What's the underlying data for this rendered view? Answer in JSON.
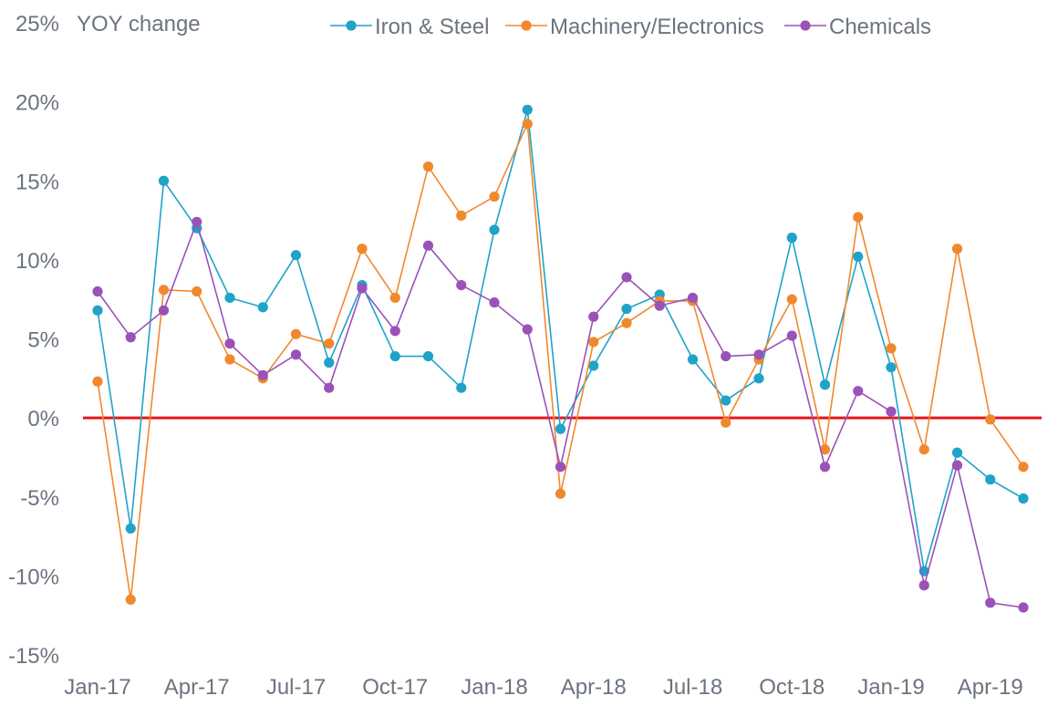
{
  "chart_data": {
    "type": "line",
    "ylabel": "YOY change",
    "ylim": [
      -15,
      25
    ],
    "yticks": [
      "25%",
      "20%",
      "15%",
      "10%",
      "5%",
      "0%",
      "-5%",
      "-10%",
      "-15%"
    ],
    "ytick_values": [
      25,
      20,
      15,
      10,
      5,
      0,
      -5,
      -10,
      -15
    ],
    "x": [
      "Jan-17",
      "Feb-17",
      "Mar-17",
      "Apr-17",
      "May-17",
      "Jun-17",
      "Jul-17",
      "Aug-17",
      "Sep-17",
      "Oct-17",
      "Nov-17",
      "Dec-17",
      "Jan-18",
      "Feb-18",
      "Mar-18",
      "Apr-18",
      "May-18",
      "Jun-18",
      "Jul-18",
      "Aug-18",
      "Sep-18",
      "Oct-18",
      "Nov-18",
      "Dec-18",
      "Jan-19",
      "Feb-19",
      "Mar-19",
      "Apr-19",
      "May-19"
    ],
    "xticks": [
      "Jan-17",
      "Apr-17",
      "Jul-17",
      "Oct-17",
      "Jan-18",
      "Apr-18",
      "Jul-18",
      "Oct-18",
      "Jan-19",
      "Apr-19"
    ],
    "xtick_indices": [
      0,
      3,
      6,
      9,
      12,
      15,
      18,
      21,
      24,
      27
    ],
    "grid": false,
    "legend_position": "top",
    "zero_line_color": "#e8151b",
    "series": [
      {
        "name": "Iron & Steel",
        "color": "#1fa3c9",
        "values": [
          6.8,
          -7.0,
          15.0,
          12.0,
          7.6,
          7.0,
          10.3,
          3.5,
          8.4,
          3.9,
          3.9,
          1.9,
          11.9,
          19.5,
          -0.7,
          3.3,
          6.9,
          7.8,
          3.7,
          1.1,
          2.5,
          11.4,
          2.1,
          10.2,
          3.2,
          -9.7,
          -2.2,
          -3.9,
          -5.1
        ]
      },
      {
        "name": "Machinery/Electronics",
        "color": "#f0892e",
        "values": [
          2.3,
          -11.5,
          8.1,
          8.0,
          3.7,
          2.5,
          5.3,
          4.7,
          10.7,
          7.6,
          15.9,
          12.8,
          14.0,
          18.6,
          -4.8,
          4.8,
          6.0,
          7.4,
          7.4,
          -0.3,
          3.7,
          7.5,
          -2.0,
          12.7,
          4.4,
          -2.0,
          10.7,
          -0.1,
          -3.1
        ]
      },
      {
        "name": "Chemicals",
        "color": "#9b52b8",
        "values": [
          8.0,
          5.1,
          6.8,
          12.4,
          4.7,
          2.7,
          4.0,
          1.9,
          8.2,
          5.5,
          10.9,
          8.4,
          7.3,
          5.6,
          -3.1,
          6.4,
          8.9,
          7.1,
          7.6,
          3.9,
          4.0,
          5.2,
          -3.1,
          1.7,
          0.4,
          -10.6,
          -3.0,
          -11.7,
          -12.0
        ]
      }
    ]
  }
}
